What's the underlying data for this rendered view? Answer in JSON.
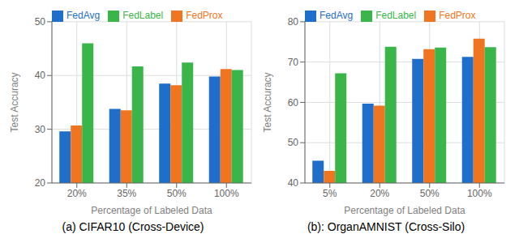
{
  "chart_data": [
    {
      "type": "bar",
      "title": "(a) CIFAR10 (Cross-Device)",
      "categories": [
        "20%",
        "35%",
        "50%",
        "100%"
      ],
      "series": [
        {
          "name": "FedAvg",
          "color": "#1f6ec9",
          "values": [
            29.6,
            33.8,
            38.5,
            39.8
          ]
        },
        {
          "name": "FedProx",
          "color": "#f07520",
          "values": [
            30.7,
            33.5,
            38.2,
            41.2
          ]
        },
        {
          "name": "FedLabel",
          "color": "#3ab54a",
          "values": [
            46.0,
            41.7,
            42.4,
            41.0
          ]
        }
      ],
      "xlabel": "Percentage of Labeled Data",
      "ylabel": "Test Accuracy",
      "ylim": [
        20,
        50
      ],
      "yticks": [
        20,
        30,
        40,
        50
      ],
      "grid": true,
      "legend": "upper left"
    },
    {
      "type": "bar",
      "title": "(b): OrganAMNIST (Cross-Silo)",
      "categories": [
        "5%",
        "20%",
        "50%",
        "100%"
      ],
      "series": [
        {
          "name": "FedAvg",
          "color": "#1f6ec9",
          "values": [
            45.5,
            59.7,
            70.8,
            71.3
          ]
        },
        {
          "name": "FedProx",
          "color": "#f07520",
          "values": [
            43.0,
            59.2,
            73.2,
            75.8
          ]
        },
        {
          "name": "FedLabel",
          "color": "#3ab54a",
          "values": [
            67.2,
            73.8,
            73.6,
            73.7
          ]
        }
      ],
      "xlabel": "Percentage of Labeled Data",
      "ylabel": "Test Accuracy",
      "ylim": [
        40,
        80
      ],
      "yticks": [
        40,
        50,
        60,
        70,
        80
      ],
      "grid": true,
      "legend": "upper left"
    }
  ]
}
